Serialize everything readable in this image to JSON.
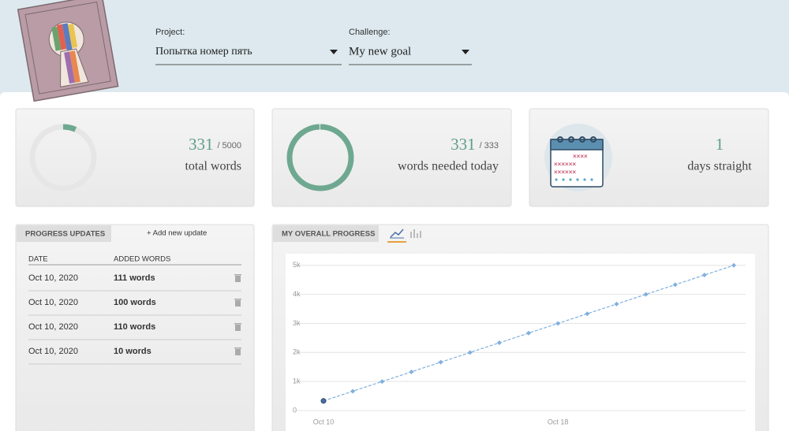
{
  "header": {
    "project_label": "Project:",
    "project": "Попытка номер пять",
    "challenge_label": "Challenge:",
    "challenge": "My new goal"
  },
  "stats": [
    {
      "value": 331,
      "separator": "/",
      "total": 5000,
      "label": "total words"
    },
    {
      "value": 331,
      "separator": "/",
      "total": 333,
      "label": "words needed today"
    },
    {
      "value": 1,
      "label": "days straight"
    }
  ],
  "updates": {
    "title": "PROGRESS UPDATES",
    "add": "+ Add new update",
    "columns": [
      "DATE",
      "ADDED WORDS"
    ],
    "rows": [
      [
        "Oct 10, 2020",
        "111 words"
      ],
      [
        "Oct 10, 2020",
        "100 words"
      ],
      [
        "Oct 10, 2020",
        "110 words"
      ],
      [
        "Oct 10, 2020",
        "10 words"
      ]
    ]
  },
  "chart": {
    "type": "line",
    "title": "MY OVERALL PROGRESS",
    "categories": [
      "Oct 10",
      null,
      null,
      null,
      null,
      null,
      null,
      null,
      "Oct 18",
      null,
      null,
      null,
      null,
      null,
      null
    ],
    "series": [
      {
        "color": "#7fb0df",
        "values": [
          331,
          664,
          998,
          1331,
          1665,
          1998,
          2332,
          2665,
          2999,
          3332,
          3666,
          3999,
          4333,
          4666,
          5000
        ]
      },
      {
        "color": "#4a6fa5",
        "values": [
          331,
          null,
          null,
          null,
          null,
          null,
          null,
          null,
          null,
          null,
          null,
          null,
          null,
          null,
          null
        ]
      }
    ],
    "ylim": [
      0,
      5400
    ],
    "yticks": [
      0,
      {
        "value": 1000,
        "label": "1k"
      },
      {
        "value": 2000,
        "label": "2k"
      },
      {
        "value": 3000,
        "label": "3k"
      },
      {
        "value": 4000,
        "label": "4k"
      },
      {
        "value": 5000,
        "label": "5k"
      }
    ],
    "grid": true
  }
}
